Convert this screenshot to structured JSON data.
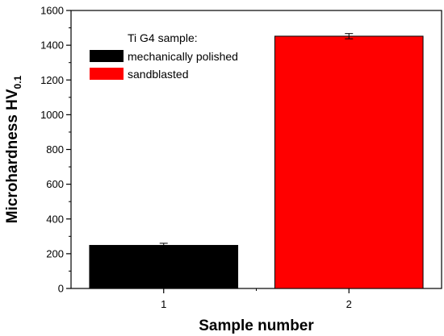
{
  "chart_data": {
    "type": "bar",
    "xlabel": "Sample number",
    "ylabel": "Microhardness HV",
    "ylabel_subscript": "0.1",
    "ylim": [
      0,
      1600
    ],
    "yticks": [
      0,
      200,
      400,
      600,
      800,
      1000,
      1200,
      1400,
      1600
    ],
    "categories": [
      "1",
      "2"
    ],
    "legend_title": "Ti G4 sample:",
    "legend_position": "top-left",
    "series": [
      {
        "name": "mechanically polished",
        "category": "1",
        "value": 248,
        "error": 12,
        "color": "#000000"
      },
      {
        "name": "sandblasted",
        "category": "2",
        "value": 1452,
        "error": 15,
        "color": "#ff0000"
      }
    ]
  }
}
